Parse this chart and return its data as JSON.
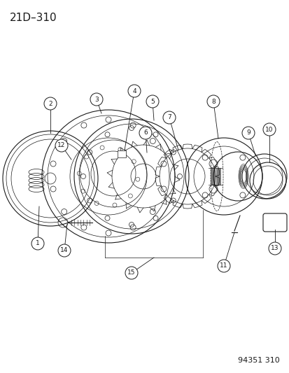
{
  "title": "21D–310",
  "watermark": "94351 310",
  "bg_color": "#ffffff",
  "line_color": "#1a1a1a",
  "title_fontsize": 11,
  "watermark_fontsize": 8,
  "diagram_scale": 1.0
}
